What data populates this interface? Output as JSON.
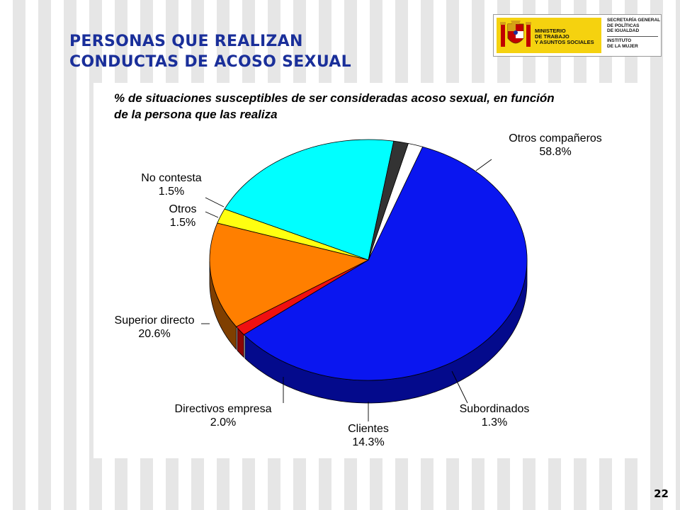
{
  "slide": {
    "title_line1": "PERSONAS QUE REALIZAN",
    "title_line2": "CONDUCTAS DE ACOSO SEXUAL",
    "page_number": "22"
  },
  "logo": {
    "ministry_lines": [
      "MINISTERIO",
      "DE TRABAJO",
      "Y ASUNTOS SOCIALES"
    ],
    "secretaria_lines": [
      "SECRETARÍA GENERAL",
      "DE POLÍTICAS",
      "DE IGUALDAD"
    ],
    "instituto_lines": [
      "INSTITUTO",
      "DE LA MUJER"
    ],
    "brand_yellow": "#f5d20f"
  },
  "chart_data": {
    "type": "pie",
    "title_line1": "% de situaciones susceptibles de ser consideradas acoso sexual, en función",
    "title_line2": "de la persona que las realiza",
    "slices": [
      {
        "label": "Otros compañeros",
        "value": 58.8,
        "display": "58.8%",
        "color": "#0a16f0",
        "side_color": "#040a8c"
      },
      {
        "label": "Subordinados",
        "value": 1.3,
        "display": "1.3%",
        "color": "#f01010",
        "side_color": "#8a0606"
      },
      {
        "label": "Clientes",
        "value": 14.3,
        "display": "14.3%",
        "color": "#ff7f00",
        "side_color": "#7f3f00"
      },
      {
        "label": "Directivos empresa",
        "value": 2.0,
        "display": "2.0%",
        "color": "#ffff10",
        "side_color": "#8c8c08"
      },
      {
        "label": "Superior directo",
        "value": 20.6,
        "display": "20.6%",
        "color": "#00ffff",
        "side_color": "#008080"
      },
      {
        "label": "Otros",
        "value": 1.5,
        "display": "1.5%",
        "color": "#333333",
        "side_color": "#1a1a1a"
      },
      {
        "label": "No contesta",
        "value": 1.5,
        "display": "1.5%",
        "color": "#ffffff",
        "side_color": "#bbbbbb"
      }
    ],
    "legend": "none",
    "three_d": true
  }
}
